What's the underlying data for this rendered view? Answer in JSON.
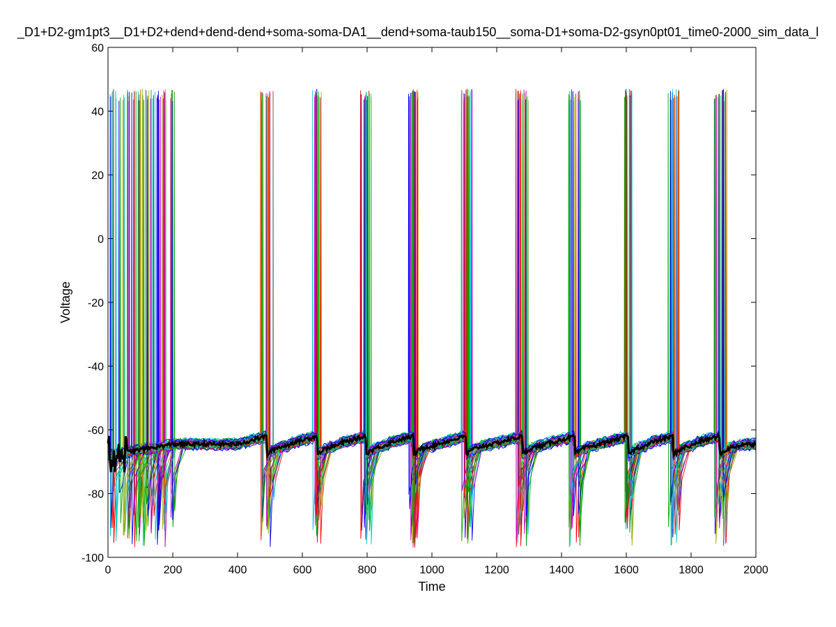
{
  "chart_data": {
    "type": "line",
    "title": "_D1+D2-gm1pt3__D1+D2+dend+dend-dend+soma-soma-DA1__dend+soma-taub150__soma-D1+soma-D2-gsyn0pt01_time0-2000_sim_data_l",
    "xlabel": "Time",
    "ylabel": "Voltage",
    "xlim": [
      0,
      2000
    ],
    "ylim": [
      -100,
      60
    ],
    "x_ticks": [
      "0",
      "200",
      "400",
      "600",
      "800",
      "1000",
      "1200",
      "1400",
      "1600",
      "1800",
      "2000"
    ],
    "y_ticks": [
      "60",
      "40",
      "20",
      "0",
      "-20",
      "-40",
      "-60",
      "-80",
      "-100"
    ],
    "grid": false,
    "legend": false,
    "spike_peak": 47,
    "spike_trough": -97,
    "early_burst": {
      "start": 0,
      "end": 210
    },
    "spike_volleys": [
      {
        "center": 490,
        "spread": 20
      },
      {
        "center": 645,
        "spread": 15
      },
      {
        "center": 795,
        "spread": 18
      },
      {
        "center": 942,
        "spread": 15
      },
      {
        "center": 1105,
        "spread": 18
      },
      {
        "center": 1278,
        "spread": 20
      },
      {
        "center": 1440,
        "spread": 20
      },
      {
        "center": 1605,
        "spread": 12
      },
      {
        "center": 1745,
        "spread": 18
      },
      {
        "center": 1888,
        "spread": 22
      }
    ],
    "mean_trace_color": "#000000",
    "series_colors": [
      "#ff0000",
      "#00aa00",
      "#0000ff",
      "#00cccc",
      "#cc00cc",
      "#aaaa00",
      "#000000"
    ]
  }
}
